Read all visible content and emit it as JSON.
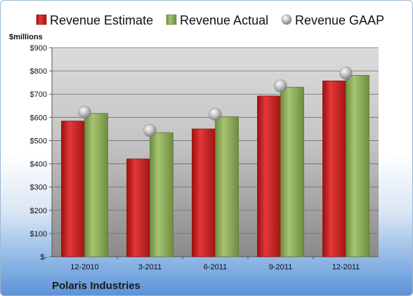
{
  "chart_data": {
    "type": "bar",
    "title": "",
    "xlabel": "",
    "ylabel": "",
    "unit_label": "$millions",
    "footer": "Polaris Industries",
    "categories": [
      "12-2010",
      "3-2011",
      "6-2011",
      "9-2011",
      "12-2011"
    ],
    "ylim": [
      0,
      900
    ],
    "yticks": [
      0,
      100,
      200,
      300,
      400,
      500,
      600,
      700,
      800,
      900
    ],
    "ytick_labels": [
      "$-",
      "$100",
      "$200",
      "$300",
      "$400",
      "$500",
      "$600",
      "$700",
      "$800",
      "$900"
    ],
    "grid": true,
    "legend_position": "top",
    "series": [
      {
        "name": "Revenue Estimate",
        "kind": "bar",
        "color": "#cc1f1f",
        "values": [
          584,
          421,
          550,
          692,
          757
        ]
      },
      {
        "name": "Revenue Actual",
        "kind": "bar",
        "color": "#8cad5a",
        "values": [
          617,
          534,
          603,
          730,
          781
        ]
      },
      {
        "name": "Revenue GAAP",
        "kind": "marker",
        "color": "#b8b8b8",
        "values": [
          622,
          543,
          613,
          735,
          790
        ]
      }
    ]
  }
}
